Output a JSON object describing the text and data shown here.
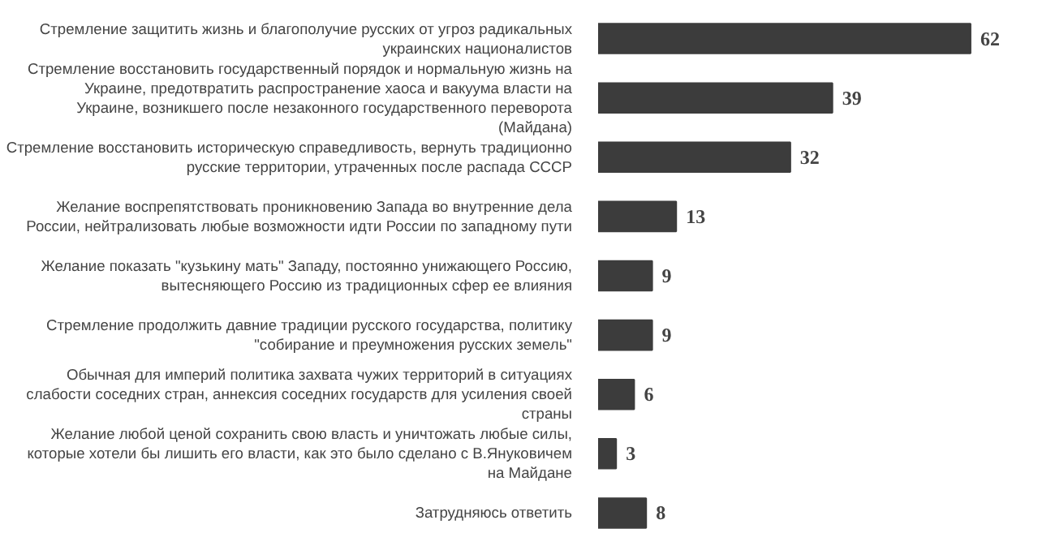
{
  "chart_data": {
    "type": "bar",
    "orientation": "horizontal",
    "relative": false,
    "data_labels": true,
    "color": "#3c3c3c",
    "categories": [
      "Стремление защитить жизнь и благополучие русских от угроз радикальных украинских националистов",
      "Стремление восстановить государственный порядок и нормальную жизнь на Украине, предотвратить распространение хаоса и вакуума власти на Украине, возникшего после незаконного государственного переворота (Майдана)",
      "Стремление восстановить историческую справедливость, вернуть традиционно русские территории, утраченных после распада СССР",
      "Желание воспрепятствовать проникновению Запада во внутренние дела России, нейтрализовать любые возможности идти России по западному пути",
      "Желание показать \"кузькину мать\" Западу, постоянно унижающего Россию, вытесняющего Россию из традиционных сфер ее влияния",
      "Стремление продолжить давние традиции русского государства, политику \"собирание и преумножения русских земель\"",
      "Обычная для империй политика захвата чужих территорий в ситуациях слабости соседних стран, аннексия соседних государств для усиления своей страны",
      "Желание любой ценой сохранить свою власть и уничтожать любые силы, которые хотели бы лишить его власти, как это было сделано с В.Януковичем на Майдане",
      "Затрудняюсь ответить"
    ],
    "values": [
      62,
      39,
      32,
      13,
      9,
      9,
      6,
      3,
      8
    ]
  }
}
